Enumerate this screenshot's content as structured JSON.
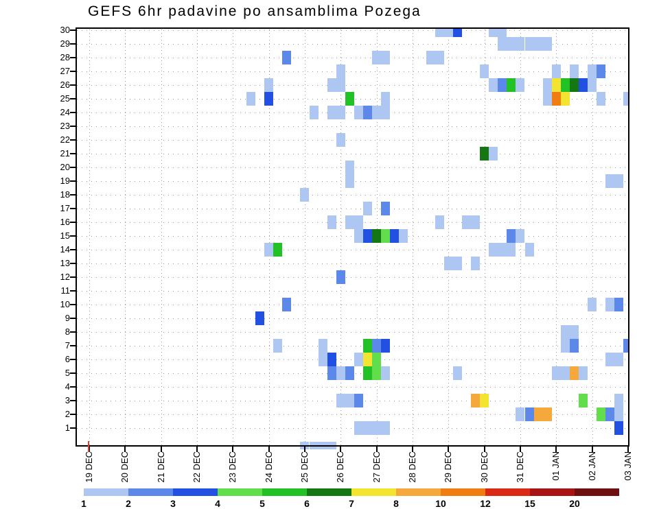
{
  "title": "GEFS 6hr padavine po ansamblima Pozega",
  "x_axis": {
    "labels": [
      "19 DEC",
      "20 DEC",
      "21 DEC",
      "22 DEC",
      "23 DEC",
      "24 DEC",
      "25 DEC",
      "26 DEC",
      "27 DEC",
      "28 DEC",
      "29 DEC",
      "30 DEC",
      "31 DEC",
      "01 JAN",
      "02 JAN",
      "03 JAN"
    ],
    "steps_per_day": 4
  },
  "y_axis": {
    "members": [
      30,
      29,
      28,
      27,
      26,
      25,
      24,
      23,
      22,
      21,
      20,
      19,
      18,
      17,
      16,
      15,
      14,
      13,
      12,
      11,
      10,
      9,
      8,
      7,
      6,
      5,
      4,
      3,
      2,
      1
    ]
  },
  "colorbar": {
    "levels": [
      "1",
      "2",
      "3",
      "4",
      "5",
      "6",
      "7",
      "8",
      "10",
      "12",
      "15",
      "20"
    ],
    "colors": [
      "#aec6f2",
      "#5c88ea",
      "#2150e2",
      "#62de4c",
      "#22c126",
      "#147714",
      "#f2e430",
      "#f5a83c",
      "#f07d12",
      "#da2a16",
      "#a81414",
      "#6e1010"
    ]
  },
  "chart_data": {
    "type": "heatmap",
    "xlabel_unit": "date (6hr steps)",
    "ylabel_unit": "ensemble member",
    "value_unit": "precipitation (mm/6hr)",
    "cells": [
      [
        39,
        30,
        1
      ],
      [
        40,
        30,
        1
      ],
      [
        41,
        30,
        3
      ],
      [
        45,
        30,
        1
      ],
      [
        46,
        30,
        1
      ],
      [
        46,
        29,
        1
      ],
      [
        47,
        29,
        1
      ],
      [
        48,
        29,
        1
      ],
      [
        49,
        29,
        1
      ],
      [
        50,
        29,
        1
      ],
      [
        51,
        29,
        1
      ],
      [
        22,
        28,
        2
      ],
      [
        32,
        28,
        1
      ],
      [
        33,
        28,
        1
      ],
      [
        38,
        28,
        1
      ],
      [
        39,
        28,
        1
      ],
      [
        28,
        27,
        1
      ],
      [
        44,
        27,
        1
      ],
      [
        52,
        27,
        1
      ],
      [
        54,
        27,
        1
      ],
      [
        56,
        27,
        1
      ],
      [
        57,
        27,
        2
      ],
      [
        20,
        26,
        1
      ],
      [
        27,
        26,
        1
      ],
      [
        28,
        26,
        1
      ],
      [
        45,
        26,
        1
      ],
      [
        46,
        26,
        2
      ],
      [
        47,
        26,
        5
      ],
      [
        48,
        26,
        1
      ],
      [
        51,
        26,
        1
      ],
      [
        52,
        26,
        7
      ],
      [
        53,
        26,
        5
      ],
      [
        54,
        26,
        6
      ],
      [
        55,
        26,
        3
      ],
      [
        56,
        26,
        1
      ],
      [
        18,
        25,
        1
      ],
      [
        20,
        25,
        3
      ],
      [
        29,
        25,
        5
      ],
      [
        33,
        25,
        1
      ],
      [
        51,
        25,
        1
      ],
      [
        52,
        25,
        10
      ],
      [
        53,
        25,
        7
      ],
      [
        57,
        25,
        1
      ],
      [
        60,
        25,
        1
      ],
      [
        25,
        24,
        1
      ],
      [
        27,
        24,
        1
      ],
      [
        28,
        24,
        1
      ],
      [
        30,
        24,
        1
      ],
      [
        31,
        24,
        2
      ],
      [
        32,
        24,
        1
      ],
      [
        33,
        24,
        1
      ],
      [
        28,
        22,
        1
      ],
      [
        44,
        21,
        6
      ],
      [
        45,
        21,
        1
      ],
      [
        29,
        20,
        1
      ],
      [
        29,
        19,
        1
      ],
      [
        58,
        19,
        1
      ],
      [
        59,
        19,
        1
      ],
      [
        24,
        18,
        1
      ],
      [
        31,
        17,
        1
      ],
      [
        33,
        17,
        2
      ],
      [
        27,
        16,
        1
      ],
      [
        29,
        16,
        1
      ],
      [
        30,
        16,
        1
      ],
      [
        39,
        16,
        1
      ],
      [
        42,
        16,
        1
      ],
      [
        43,
        16,
        1
      ],
      [
        30,
        15,
        1
      ],
      [
        31,
        15,
        3
      ],
      [
        32,
        15,
        6
      ],
      [
        33,
        15,
        4
      ],
      [
        34,
        15,
        3
      ],
      [
        35,
        15,
        1
      ],
      [
        47,
        15,
        2
      ],
      [
        48,
        15,
        1
      ],
      [
        20,
        14,
        1
      ],
      [
        21,
        14,
        5
      ],
      [
        45,
        14,
        1
      ],
      [
        46,
        14,
        1
      ],
      [
        47,
        14,
        1
      ],
      [
        49,
        14,
        1
      ],
      [
        40,
        13,
        1
      ],
      [
        41,
        13,
        1
      ],
      [
        43,
        13,
        1
      ],
      [
        28,
        12,
        2
      ],
      [
        22,
        10,
        2
      ],
      [
        56,
        10,
        1
      ],
      [
        58,
        10,
        1
      ],
      [
        59,
        10,
        2
      ],
      [
        19,
        9,
        3
      ],
      [
        53,
        8,
        1
      ],
      [
        54,
        8,
        1
      ],
      [
        21,
        7,
        1
      ],
      [
        26,
        7,
        1
      ],
      [
        31,
        7,
        5
      ],
      [
        32,
        7,
        2
      ],
      [
        33,
        7,
        3
      ],
      [
        53,
        7,
        1
      ],
      [
        54,
        7,
        2
      ],
      [
        60,
        7,
        2
      ],
      [
        26,
        6,
        1
      ],
      [
        27,
        6,
        3
      ],
      [
        30,
        6,
        1
      ],
      [
        31,
        6,
        7
      ],
      [
        32,
        6,
        4
      ],
      [
        58,
        6,
        1
      ],
      [
        59,
        6,
        1
      ],
      [
        27,
        5,
        2
      ],
      [
        28,
        5,
        1
      ],
      [
        29,
        5,
        2
      ],
      [
        31,
        5,
        5
      ],
      [
        32,
        5,
        4
      ],
      [
        33,
        5,
        1
      ],
      [
        41,
        5,
        1
      ],
      [
        52,
        5,
        1
      ],
      [
        53,
        5,
        1
      ],
      [
        54,
        5,
        8
      ],
      [
        55,
        5,
        1
      ],
      [
        28,
        3,
        1
      ],
      [
        29,
        3,
        1
      ],
      [
        30,
        3,
        2
      ],
      [
        43,
        3,
        8
      ],
      [
        44,
        3,
        7
      ],
      [
        55,
        3,
        4
      ],
      [
        59,
        3,
        1
      ],
      [
        48,
        2,
        1
      ],
      [
        49,
        2,
        2
      ],
      [
        50,
        2,
        8
      ],
      [
        51,
        2,
        8
      ],
      [
        57,
        2,
        4
      ],
      [
        58,
        2,
        2
      ],
      [
        59,
        2,
        1
      ],
      [
        30,
        1,
        1
      ],
      [
        31,
        1,
        1
      ],
      [
        32,
        1,
        1
      ],
      [
        33,
        1,
        1
      ],
      [
        59,
        1,
        3
      ]
    ],
    "bottom_strip_cells": [
      [
        24,
        1
      ],
      [
        25,
        1
      ],
      [
        26,
        1
      ],
      [
        27,
        1
      ]
    ],
    "origin_marker_color": "#cc4433"
  }
}
